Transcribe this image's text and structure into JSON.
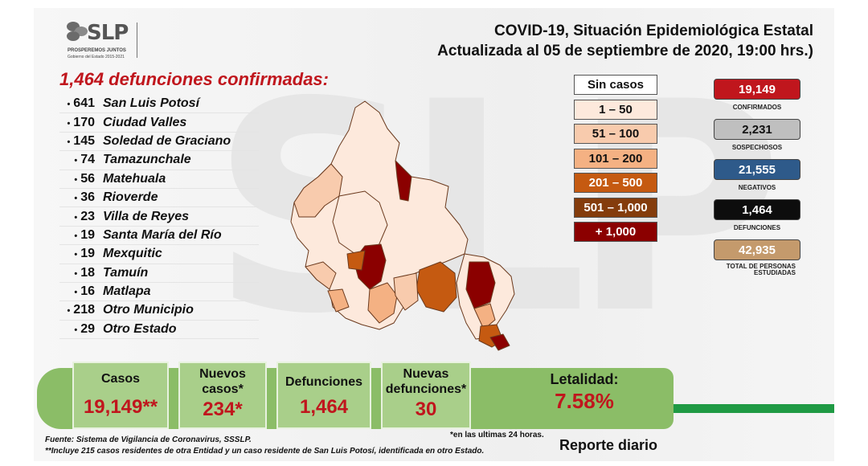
{
  "logo": {
    "text": "SLP",
    "tagline": "PROSPEREMOS JUNTOS",
    "subtitle": "Gobierno del Estado 2015-2021"
  },
  "title": {
    "line1": "COVID-19, Situación Epidemiológica Estatal",
    "line2": "Actualizada al 05 de septiembre de 2020, 19:00 hrs.)"
  },
  "deaths": {
    "title": "1,464 defunciones confirmadas:",
    "items": [
      {
        "count": "641",
        "name": "San Luis Potosí"
      },
      {
        "count": "170",
        "name": "Ciudad Valles"
      },
      {
        "count": "145",
        "name": "Soledad de Graciano"
      },
      {
        "count": "74",
        "name": "Tamazunchale"
      },
      {
        "count": "56",
        "name": "Matehuala"
      },
      {
        "count": "36",
        "name": "Rioverde"
      },
      {
        "count": "23",
        "name": "Villa de Reyes"
      },
      {
        "count": "19",
        "name": "Santa María del Río"
      },
      {
        "count": "19",
        "name": "Mexquitic"
      },
      {
        "count": "18",
        "name": "Tamuín"
      },
      {
        "count": "16",
        "name": "Matlapa"
      },
      {
        "count": "218",
        "name": "Otro Municipio"
      },
      {
        "count": "29",
        "name": "Otro Estado"
      }
    ]
  },
  "legend": [
    {
      "label": "Sin casos",
      "color": "#ffffff",
      "text_color": "#111111"
    },
    {
      "label": "1 – 50",
      "color": "#fde9dc",
      "text_color": "#111111"
    },
    {
      "label": "51 – 100",
      "color": "#f8cbad",
      "text_color": "#111111"
    },
    {
      "label": "101 – 200",
      "color": "#f4b183",
      "text_color": "#111111"
    },
    {
      "label": "201 – 500",
      "color": "#c55a11",
      "text_color": "#ffffff"
    },
    {
      "label": "501 – 1,000",
      "color": "#843c0c",
      "text_color": "#ffffff"
    },
    {
      "label": "+ 1,000",
      "color": "#8b0000",
      "text_color": "#ffffff"
    }
  ],
  "stats": [
    {
      "value": "19,149",
      "label": "CONFIRMADOS",
      "color": "#c0161d",
      "text_color": "#ffffff"
    },
    {
      "value": "2,231",
      "label": "SOSPECHOSOS",
      "color": "#bfbfbf",
      "text_color": "#111111"
    },
    {
      "value": "21,555",
      "label": "NEGATIVOS",
      "color": "#2e5a8a",
      "text_color": "#ffffff"
    },
    {
      "value": "1,464",
      "label": "DEFUNCIONES",
      "color": "#0d0d0d",
      "text_color": "#ffffff"
    },
    {
      "value": "42,935",
      "label": "TOTAL DE PERSONAS ESTUDIADAS",
      "color": "#c49a6c",
      "text_color": "#ffffff"
    }
  ],
  "cards": {
    "casos": {
      "label": "Casos",
      "value": "19,149**"
    },
    "nuevos_casos": {
      "label1": "Nuevos",
      "label2": "casos*",
      "value": "234*"
    },
    "defunciones": {
      "label": "Defunciones",
      "value": "1,464"
    },
    "nuevas_defunciones": {
      "label1": "Nuevas",
      "label2": "defunciones*",
      "value": "30"
    },
    "letalidad": {
      "label": "Letalidad:",
      "value": "7.58%"
    }
  },
  "notes": {
    "last24": "*en las ultimas 24 horas.",
    "source": "Fuente: Sistema de Vigilancia de Coronavirus, SSSLP.",
    "footnote": "**Incluye 215 casos residentes de otra Entidad y un caso residente de San Luis Potosí, identificada en otro Estado.",
    "report": "Reporte diario"
  }
}
